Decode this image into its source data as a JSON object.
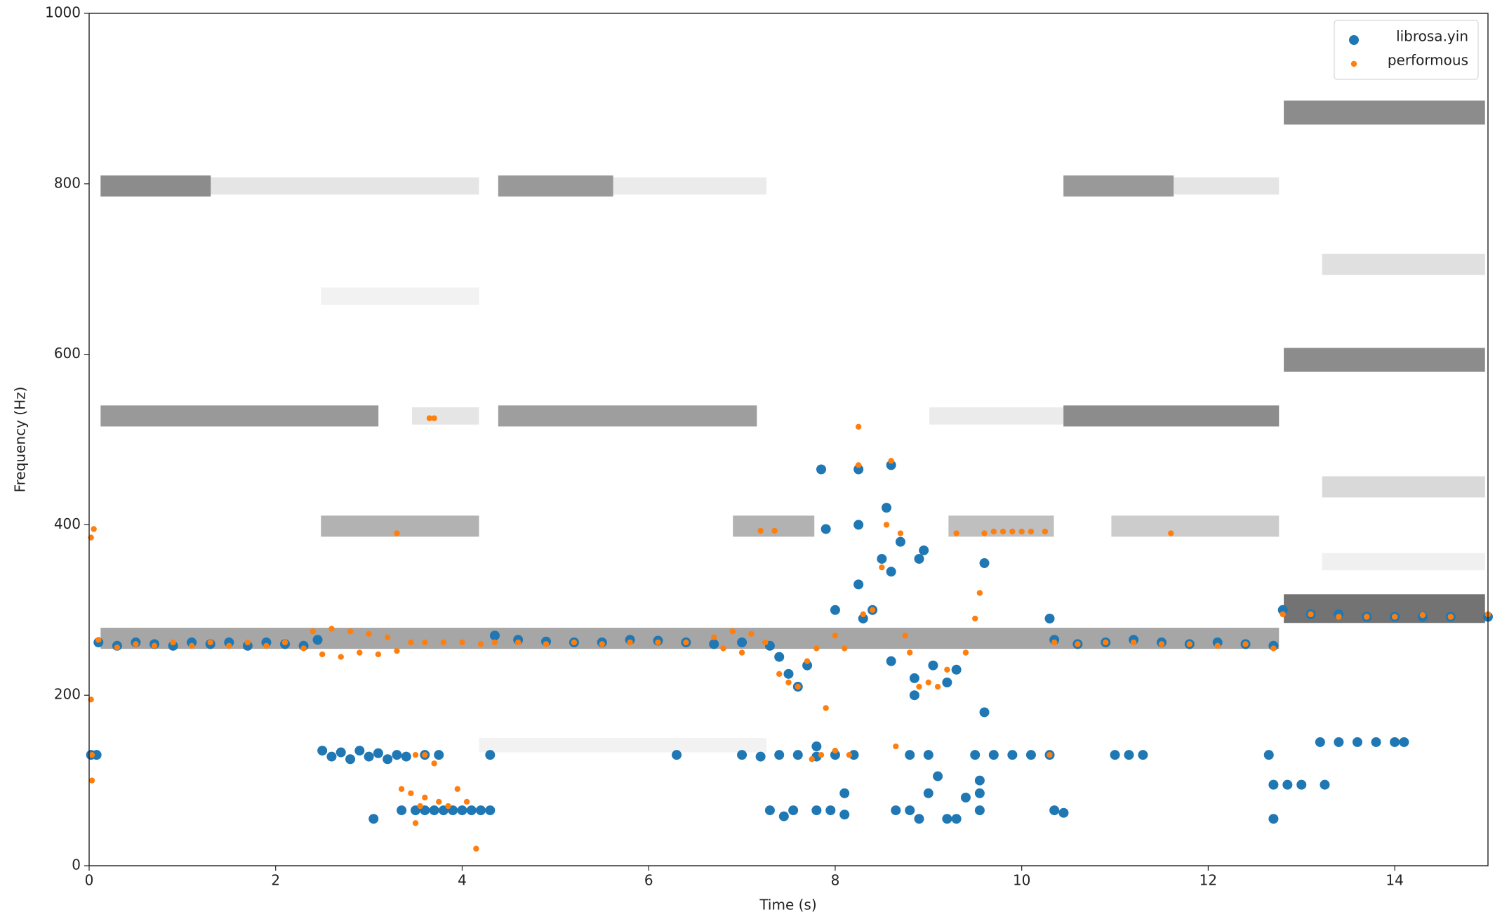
{
  "chart_data": {
    "type": "scatter",
    "xlabel": "Time (s)",
    "ylabel": "Frequency (Hz)",
    "xlim": [
      0,
      15
    ],
    "ylim": [
      0,
      1000
    ],
    "xticks": [
      0,
      2,
      4,
      6,
      8,
      10,
      12,
      14
    ],
    "yticks": [
      0,
      200,
      400,
      600,
      800,
      1000
    ],
    "legend": "upper right",
    "series": [
      {
        "name": "librosa.yin",
        "color": "#1f77b4",
        "x": [
          0.02,
          0.08,
          0.1,
          0.3,
          0.5,
          0.7,
          0.9,
          1.1,
          1.3,
          1.5,
          1.7,
          1.9,
          2.1,
          2.3,
          2.45,
          2.5,
          2.6,
          2.7,
          2.8,
          2.9,
          3.0,
          3.1,
          3.2,
          3.3,
          3.4,
          3.05,
          3.35,
          3.5,
          3.6,
          3.7,
          3.8,
          3.9,
          4.0,
          4.1,
          4.2,
          4.3,
          3.6,
          3.75,
          4.3,
          4.35,
          4.6,
          4.9,
          5.2,
          5.5,
          5.8,
          6.1,
          6.4,
          6.7,
          7.0,
          7.3,
          6.3,
          7.0,
          7.2,
          7.4,
          7.6,
          7.8,
          8.0,
          8.2,
          7.8,
          7.3,
          7.45,
          7.55,
          7.8,
          7.4,
          7.5,
          7.6,
          7.7,
          7.85,
          7.9,
          8.0,
          7.95,
          8.1,
          8.1,
          8.25,
          8.25,
          8.25,
          8.3,
          8.4,
          8.5,
          8.55,
          8.6,
          8.6,
          8.6,
          8.7,
          8.65,
          8.8,
          8.9,
          8.85,
          8.85,
          8.9,
          8.95,
          8.8,
          9.0,
          9.1,
          9.0,
          9.2,
          9.3,
          9.4,
          9.05,
          9.2,
          9.3,
          9.5,
          9.7,
          9.9,
          10.1,
          10.3,
          9.6,
          9.6,
          9.55,
          9.55,
          9.55,
          10.3,
          10.35,
          10.35,
          10.45,
          10.6,
          10.9,
          11.2,
          11.5,
          11.8,
          12.1,
          12.4,
          12.7,
          11.0,
          11.15,
          11.3,
          12.65,
          12.7,
          12.7,
          12.85,
          13.0,
          13.25,
          12.8,
          13.1,
          13.4,
          13.7,
          14.0,
          14.3,
          14.6,
          15.0,
          13.2,
          13.4,
          13.6,
          13.8,
          14.0,
          14.1
        ],
        "values": [
          130,
          130,
          262,
          258,
          262,
          260,
          258,
          262,
          260,
          262,
          258,
          262,
          260,
          258,
          265,
          135,
          128,
          133,
          125,
          135,
          128,
          132,
          125,
          130,
          128,
          55,
          65,
          65,
          65,
          65,
          65,
          65,
          65,
          65,
          65,
          65,
          130,
          130,
          130,
          270,
          265,
          263,
          262,
          262,
          265,
          264,
          262,
          260,
          262,
          258,
          130,
          130,
          128,
          130,
          130,
          128,
          130,
          130,
          140,
          65,
          58,
          65,
          65,
          245,
          225,
          210,
          235,
          465,
          395,
          300,
          65,
          85,
          60,
          465,
          400,
          330,
          290,
          300,
          360,
          420,
          470,
          345,
          240,
          380,
          65,
          65,
          55,
          200,
          220,
          360,
          370,
          130,
          130,
          105,
          85,
          55,
          55,
          80,
          235,
          215,
          230,
          130,
          130,
          130,
          130,
          130,
          180,
          355,
          85,
          100,
          65,
          290,
          265,
          65,
          62,
          260,
          262,
          265,
          262,
          260,
          262,
          260,
          258,
          130,
          130,
          130,
          130,
          55,
          95,
          95,
          95,
          95,
          300,
          295,
          295,
          292,
          292,
          292,
          292,
          292,
          145,
          145,
          145,
          145,
          145,
          145
        ]
      },
      {
        "name": "performous",
        "color": "#ff7f0e",
        "x": [
          0.02,
          0.05,
          0.02,
          0.03,
          0.03,
          0.1,
          0.3,
          0.5,
          0.7,
          0.9,
          1.1,
          1.3,
          1.5,
          1.7,
          1.9,
          2.1,
          2.3,
          2.4,
          2.5,
          2.6,
          2.7,
          2.8,
          2.9,
          3.0,
          3.1,
          3.2,
          3.3,
          3.45,
          3.6,
          3.8,
          4.0,
          4.2,
          3.65,
          3.7,
          3.3,
          3.35,
          3.45,
          3.55,
          3.6,
          3.75,
          3.85,
          3.95,
          4.05,
          3.5,
          3.5,
          3.6,
          3.7,
          4.15,
          4.35,
          4.6,
          4.9,
          5.2,
          5.5,
          5.8,
          6.1,
          6.4,
          6.7,
          6.8,
          6.9,
          7.0,
          7.1,
          7.25,
          7.2,
          7.35,
          7.4,
          7.5,
          7.6,
          7.7,
          7.8,
          7.9,
          7.75,
          7.85,
          8.0,
          8.15,
          8.0,
          8.1,
          8.25,
          8.25,
          8.3,
          8.4,
          8.5,
          8.55,
          8.6,
          8.65,
          8.7,
          8.75,
          8.8,
          8.9,
          9.0,
          9.1,
          9.2,
          9.3,
          9.4,
          9.5,
          9.55,
          9.6,
          9.7,
          9.8,
          9.9,
          10.0,
          10.1,
          10.25,
          10.3,
          10.35,
          10.6,
          10.9,
          11.2,
          11.5,
          11.6,
          11.8,
          12.1,
          12.4,
          12.7,
          12.8,
          13.1,
          13.4,
          13.7,
          14.0,
          14.3,
          14.6,
          15.0
        ],
        "values": [
          385,
          395,
          195,
          100,
          130,
          265,
          256,
          260,
          258,
          262,
          258,
          262,
          258,
          262,
          258,
          262,
          255,
          275,
          248,
          278,
          245,
          275,
          250,
          272,
          248,
          268,
          252,
          262,
          262,
          262,
          262,
          260,
          525,
          525,
          390,
          90,
          85,
          70,
          80,
          75,
          70,
          90,
          75,
          50,
          130,
          130,
          120,
          20,
          262,
          262,
          260,
          262,
          260,
          262,
          262,
          262,
          268,
          255,
          275,
          250,
          272,
          262,
          393,
          393,
          225,
          215,
          210,
          240,
          255,
          185,
          125,
          130,
          135,
          130,
          270,
          255,
          515,
          470,
          295,
          300,
          350,
          400,
          475,
          140,
          390,
          270,
          250,
          210,
          215,
          210,
          230,
          390,
          250,
          290,
          320,
          390,
          392,
          392,
          392,
          392,
          392,
          392,
          130,
          262,
          260,
          262,
          262,
          260,
          390,
          260,
          258,
          260,
          255,
          295,
          295,
          292,
          292,
          292,
          294,
          292,
          295
        ]
      }
    ]
  }
}
